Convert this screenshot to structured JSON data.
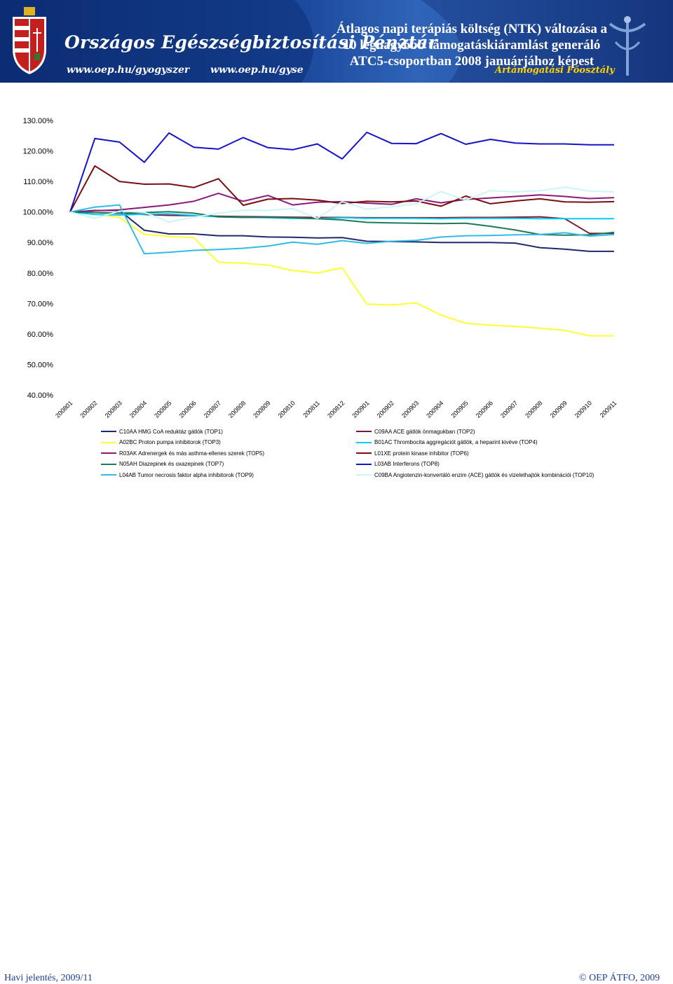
{
  "header": {
    "org_name": "Országos Egészségbiztosítási Pénztár",
    "url_1": "www.oep.hu/gyogyszer",
    "url_2": "www.oep.hu/gyse",
    "title_lines": [
      "Átlagos napi terápiás költség (NTK) változása a",
      "10 legnagyobb támogatáskiáramlást generáló",
      "ATC5-csoportban 2008 januárjához képest"
    ],
    "department": "Ártámogatási Főosztály"
  },
  "footer": {
    "left": "Havi jelentés, 2009/11",
    "right": "© OEP ÁTFO, 2009"
  },
  "colors": {
    "banner": "#1c4a9c",
    "title_text": "#ffffff",
    "department_text": "#ffd200",
    "footer_text": "#1f3f8f"
  },
  "chart_data": {
    "type": "line",
    "title": "Átlagos napi terápiás költség (NTK) változása a 10 legnagyobb támogatáskiáramlást generáló ATC5-csoportban 2008 januárjához képest",
    "xlabel": "",
    "ylabel": "",
    "ylim": [
      40,
      130
    ],
    "y_ticks": [
      130,
      120,
      110,
      100,
      90,
      80,
      70,
      60,
      50,
      40
    ],
    "y_tick_labels": [
      "130.00%",
      "120.00%",
      "110.00%",
      "100.00%",
      "90.00%",
      "80.00%",
      "70.00%",
      "60.00%",
      "50.00%",
      "40.00%"
    ],
    "grid": false,
    "legend_position": "bottom",
    "categories": [
      "200801",
      "200802",
      "200803",
      "200804",
      "200805",
      "200806",
      "200807",
      "200808",
      "200809",
      "200810",
      "200811",
      "200812",
      "200901",
      "200902",
      "200903",
      "200904",
      "200905",
      "200906",
      "200907",
      "200908",
      "200909",
      "200910",
      "200911"
    ],
    "series": [
      {
        "name": "C10AA HMG CoA reduktáz gátlók (TOP1)",
        "color": "#1f2a6b",
        "values": [
          100,
          100.5,
          100.5,
          94,
          92.8,
          92.8,
          92.2,
          92.2,
          91.8,
          91.7,
          91.5,
          91.6,
          90.4,
          90.3,
          90.2,
          90,
          90,
          90,
          89.8,
          88.3,
          87.8,
          87.1,
          87.1
        ]
      },
      {
        "name": "C09AA ACE gátlók önmagukban (TOP2)",
        "color": "#7a1a3a",
        "values": [
          100,
          99.8,
          99.6,
          99.2,
          98.9,
          98.8,
          98.6,
          98.5,
          98.4,
          98.3,
          98.2,
          98.2,
          98.1,
          98.1,
          98.1,
          98.1,
          98.2,
          98.2,
          98.3,
          98.4,
          97.8,
          93,
          93
        ]
      },
      {
        "name": "A02BC Proton pumpa inhibitorok (TOP3)",
        "color": "#ffff33",
        "values": [
          100,
          99.3,
          98.2,
          92.7,
          92,
          91.6,
          83.5,
          83.2,
          82.6,
          80.8,
          80,
          81.7,
          69.8,
          69.5,
          70.2,
          66.2,
          63.5,
          62.9,
          62.5,
          61.9,
          61.2,
          59.4,
          59.4
        ]
      },
      {
        "name": "B01AC Thrombocita aggregációt gátlók, a heparint kivéve (TOP4)",
        "color": "#00ccff",
        "values": [
          100,
          99.2,
          99,
          99.3,
          99.4,
          98.9,
          98.4,
          98.3,
          98.1,
          97.9,
          97.8,
          98.1,
          97.9,
          97.9,
          97.9,
          97.8,
          97.9,
          97.9,
          97.9,
          97.8,
          97.8,
          97.8,
          97.8
        ]
      },
      {
        "name": "R03AK Adrenergek és más asthma-ellenes szerek (TOP5)",
        "color": "#8b1a7a",
        "values": [
          100,
          100.4,
          100.7,
          101.5,
          102.3,
          103.5,
          106.1,
          103.5,
          105.4,
          102.3,
          103.2,
          103.4,
          102.9,
          102.5,
          104.3,
          103,
          104.1,
          104.6,
          105.1,
          105.6,
          105.1,
          104.4,
          104.7
        ]
      },
      {
        "name": "L01XE protein kinase inhibitor (TOP6)",
        "color": "#7a0f0f",
        "values": [
          100,
          115.1,
          110,
          109.1,
          109.2,
          108,
          110.9,
          102.2,
          104.2,
          104.4,
          103.9,
          102.8,
          103.5,
          103.3,
          103.6,
          101.9,
          105.2,
          102.7,
          103.6,
          104.3,
          103.3,
          103.2,
          103.4
        ]
      },
      {
        "name": "N05AH Diazepinek és oxazepinek (TOP7)",
        "color": "#1f7a5a",
        "values": [
          100,
          99.8,
          99.6,
          99.8,
          100.1,
          99.6,
          98.4,
          98.2,
          98.3,
          98.1,
          97.8,
          97.4,
          96.6,
          96.4,
          96.3,
          96.2,
          96.3,
          95.3,
          94.1,
          92.6,
          92.4,
          92.5,
          93.3
        ]
      },
      {
        "name": "L03AB Interferons (TOP8)",
        "color": "#1414c8",
        "values": [
          100,
          124.1,
          122.9,
          116.3,
          125.9,
          121.2,
          120.6,
          124.4,
          121.1,
          120.4,
          122.3,
          117.4,
          126.1,
          122.5,
          122.4,
          125.7,
          122.2,
          123.8,
          122.6,
          122.3,
          122.3,
          122,
          122
        ]
      },
      {
        "name": "L04AB Tumor necrosis faktor alpha inhibitorok (TOP9)",
        "color": "#33bbe8",
        "values": [
          100,
          101.6,
          102.3,
          86.3,
          86.8,
          87.4,
          87.7,
          88.1,
          88.8,
          90.1,
          89.4,
          90.6,
          89.7,
          90.4,
          90.7,
          91.8,
          92.2,
          92.3,
          92.5,
          92.6,
          93.2,
          92.1,
          92.6
        ]
      },
      {
        "name": "C09BA Angiotenzin-konvertáló enzim (ACE) gátlók és vizelethajtók kombinációi (TOP10)",
        "color": "#ccf5f5",
        "values": [
          100,
          97.9,
          100.3,
          99.9,
          96.7,
          98.3,
          99.6,
          100.6,
          100.5,
          101.1,
          97.9,
          103.4,
          100.9,
          101.7,
          102.7,
          106.7,
          103.9,
          107,
          106.6,
          107,
          108.1,
          106.9,
          106.6
        ]
      }
    ]
  }
}
